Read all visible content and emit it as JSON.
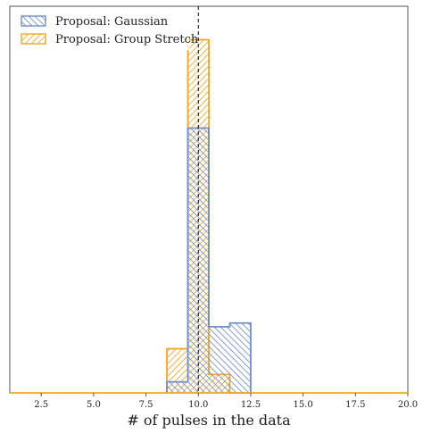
{
  "chart_data": {
    "type": "histogram",
    "xlabel": "# of pulses in the data",
    "xlim": [
      1.0,
      20.0
    ],
    "ylim": [
      0,
      1.0
    ],
    "xticks": [
      2.5,
      5.0,
      7.5,
      10.0,
      12.5,
      15.0,
      17.5,
      20.0
    ],
    "xtick_labels": [
      "2.5",
      "5.0",
      "7.5",
      "10.0",
      "12.5",
      "15.0",
      "17.5",
      "20.0"
    ],
    "yticks_shown": false,
    "reference_line": {
      "x": 10.0,
      "style": "dashed",
      "color": "#000000"
    },
    "legend_position": "upper-left",
    "bin_edges": [
      8.5,
      9.5,
      10.5,
      11.5,
      12.5
    ],
    "series": [
      {
        "name": "Proposal: Gaussian",
        "color": "#6f8fc9",
        "hatch": "backslash",
        "values": [
          0.03,
          0.72,
          0.18,
          0.19
        ]
      },
      {
        "name": "Proposal: Group Stretch",
        "color": "#f5a623",
        "hatch": "slash",
        "values": [
          0.12,
          0.96,
          0.05,
          0.0
        ]
      }
    ]
  }
}
